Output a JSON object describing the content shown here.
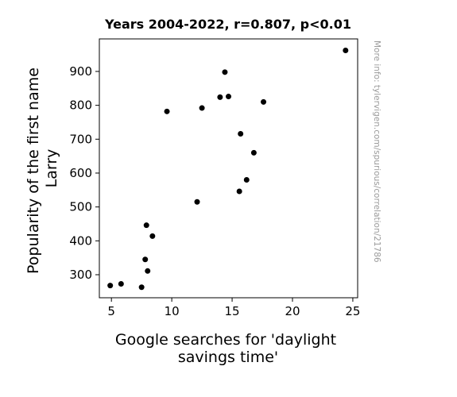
{
  "chart_data": {
    "type": "scatter",
    "title": "Years 2004-2022, r=0.807, p<0.01",
    "xlabel": [
      "Google searches for 'daylight",
      "savings time'"
    ],
    "ylabel": [
      "Popularity of the first name",
      "Larry"
    ],
    "xlim": [
      4,
      25.4
    ],
    "ylim": [
      232,
      996
    ],
    "xticks": [
      5,
      10,
      15,
      20,
      25
    ],
    "yticks": [
      300,
      400,
      500,
      600,
      700,
      800,
      900
    ],
    "watermark": "More info: tylervigen.com/spurious/correlation/21786",
    "points": [
      {
        "x": 4.9,
        "y": 268
      },
      {
        "x": 5.8,
        "y": 273
      },
      {
        "x": 7.5,
        "y": 263
      },
      {
        "x": 7.8,
        "y": 345
      },
      {
        "x": 7.9,
        "y": 446
      },
      {
        "x": 8.0,
        "y": 311
      },
      {
        "x": 8.4,
        "y": 414
      },
      {
        "x": 9.6,
        "y": 782
      },
      {
        "x": 12.1,
        "y": 515
      },
      {
        "x": 12.5,
        "y": 792
      },
      {
        "x": 14.0,
        "y": 824
      },
      {
        "x": 14.4,
        "y": 898
      },
      {
        "x": 14.7,
        "y": 826
      },
      {
        "x": 15.6,
        "y": 546
      },
      {
        "x": 15.7,
        "y": 716
      },
      {
        "x": 16.2,
        "y": 580
      },
      {
        "x": 16.8,
        "y": 660
      },
      {
        "x": 17.6,
        "y": 810
      },
      {
        "x": 24.4,
        "y": 962
      }
    ],
    "marker_color": "#000000",
    "grid": false
  }
}
